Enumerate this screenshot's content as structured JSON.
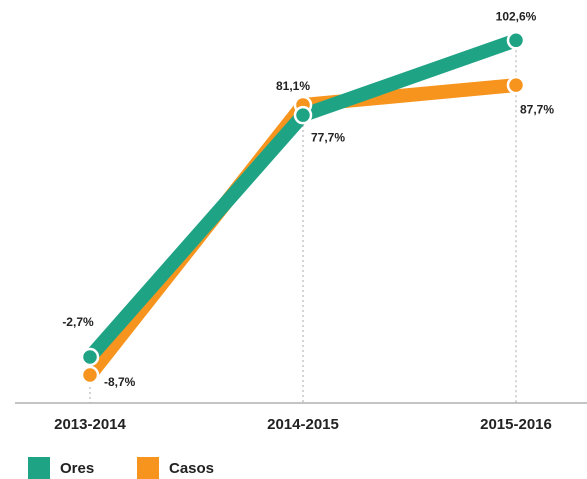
{
  "chart_data": {
    "type": "line",
    "categories": [
      "2013-2014",
      "2014-2015",
      "2015-2016"
    ],
    "series": [
      {
        "name": "Casos",
        "color": "#f7941d",
        "values": [
          -8.7,
          81.1,
          87.7
        ],
        "value_labels": [
          "-8,7%",
          "81,1%",
          "87,7%"
        ]
      },
      {
        "name": "Ores",
        "color": "#1fa385",
        "values": [
          -2.7,
          77.7,
          102.6
        ],
        "value_labels": [
          "-2,7%",
          "77,7%",
          "102,6%"
        ]
      }
    ],
    "ylim": [
      -18,
      116
    ]
  }
}
